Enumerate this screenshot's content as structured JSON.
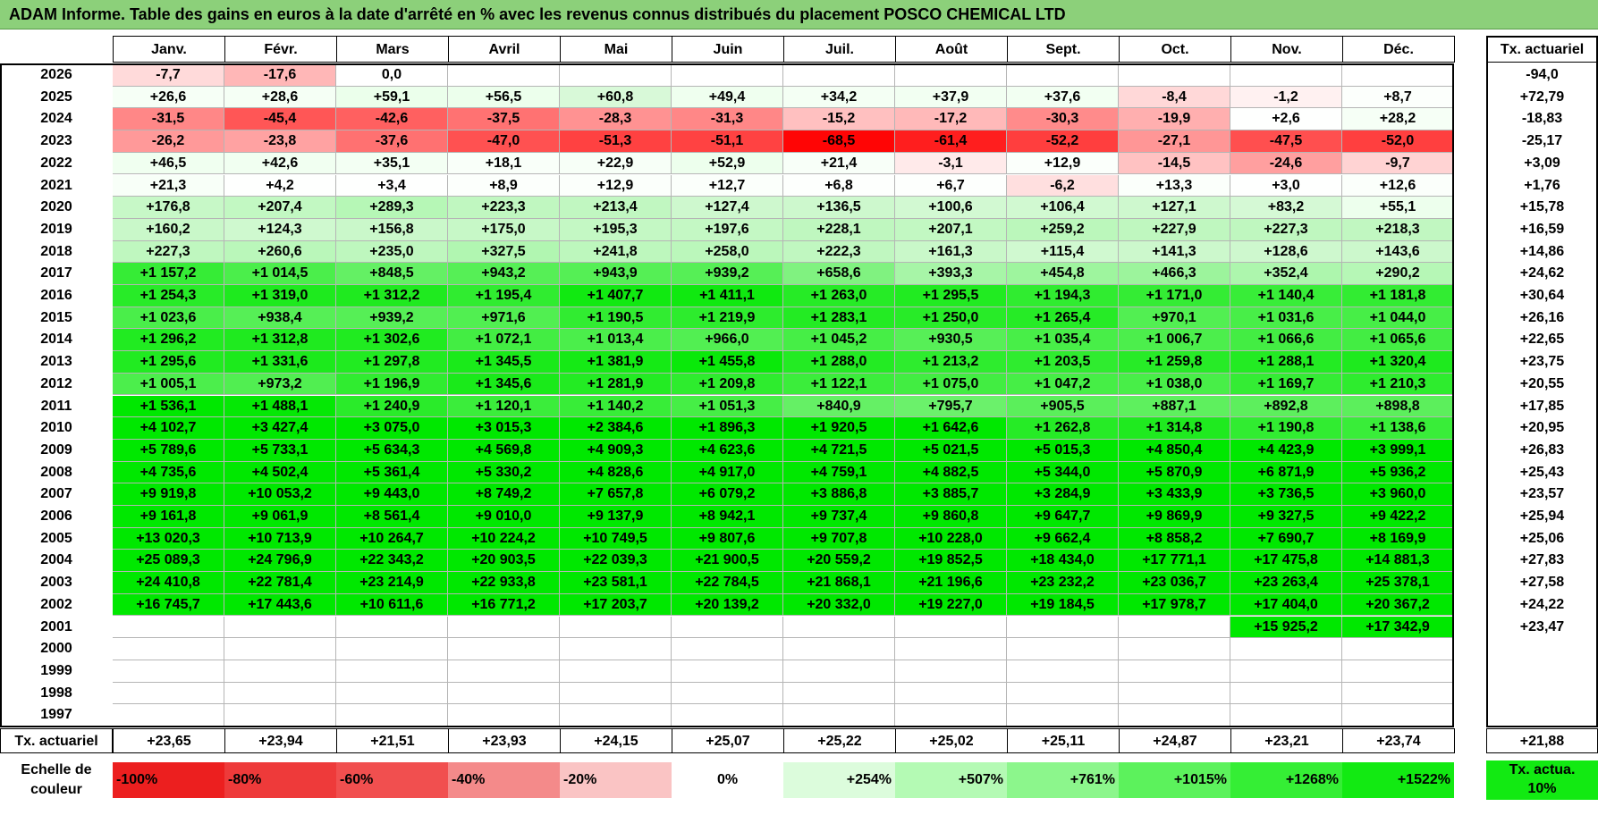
{
  "title": "ADAM Informe. Table des gains en euros à la date d'arrêté en % avec les revenus connus distribués du placement POSCO CHEMICAL LTD",
  "months": [
    "Janv.",
    "Févr.",
    "Mars",
    "Avril",
    "Mai",
    "Juin",
    "Juil.",
    "Août",
    "Sept.",
    "Oct.",
    "Nov.",
    "Déc."
  ],
  "rate_header": "Tx. actuariel",
  "rows": [
    {
      "year": "2026",
      "values": [
        "-7,7",
        "-17,6",
        "0,0",
        "",
        "",
        "",
        "",
        "",
        "",
        "",
        "",
        ""
      ],
      "rate": "-94,0"
    },
    {
      "year": "2025",
      "values": [
        "+26,6",
        "+28,6",
        "+59,1",
        "+56,5",
        "+60,8",
        "+49,4",
        "+34,2",
        "+37,9",
        "+37,6",
        "-8,4",
        "-1,2",
        "+8,7"
      ],
      "rate": "+72,79"
    },
    {
      "year": "2024",
      "values": [
        "-31,5",
        "-45,4",
        "-42,6",
        "-37,5",
        "-28,3",
        "-31,3",
        "-15,2",
        "-17,2",
        "-30,3",
        "-19,9",
        "+2,6",
        "+28,2"
      ],
      "rate": "-18,83"
    },
    {
      "year": "2023",
      "values": [
        "-26,2",
        "-23,8",
        "-37,6",
        "-47,0",
        "-51,3",
        "-51,1",
        "-68,5",
        "-61,4",
        "-52,2",
        "-27,1",
        "-47,5",
        "-52,0"
      ],
      "rate": "-25,17"
    },
    {
      "year": "2022",
      "values": [
        "+46,5",
        "+42,6",
        "+35,1",
        "+18,1",
        "+22,9",
        "+52,9",
        "+21,4",
        "-3,1",
        "+12,9",
        "-14,5",
        "-24,6",
        "-9,7"
      ],
      "rate": "+3,09"
    },
    {
      "year": "2021",
      "values": [
        "+21,3",
        "+4,2",
        "+3,4",
        "+8,9",
        "+12,9",
        "+12,7",
        "+6,8",
        "+6,7",
        "-6,2",
        "+13,3",
        "+3,0",
        "+12,6"
      ],
      "rate": "+1,76"
    },
    {
      "year": "2020",
      "values": [
        "+176,8",
        "+207,4",
        "+289,3",
        "+223,3",
        "+213,4",
        "+127,4",
        "+136,5",
        "+100,6",
        "+106,4",
        "+127,1",
        "+83,2",
        "+55,1"
      ],
      "rate": "+15,78"
    },
    {
      "year": "2019",
      "values": [
        "+160,2",
        "+124,3",
        "+156,8",
        "+175,0",
        "+195,3",
        "+197,6",
        "+228,1",
        "+207,1",
        "+259,2",
        "+227,9",
        "+227,3",
        "+218,3"
      ],
      "rate": "+16,59"
    },
    {
      "year": "2018",
      "values": [
        "+227,3",
        "+260,6",
        "+235,0",
        "+327,5",
        "+241,8",
        "+258,0",
        "+222,3",
        "+161,3",
        "+115,4",
        "+141,3",
        "+128,6",
        "+143,6"
      ],
      "rate": "+14,86"
    },
    {
      "year": "2017",
      "values": [
        "+1 157,2",
        "+1 014,5",
        "+848,5",
        "+943,2",
        "+943,9",
        "+939,2",
        "+658,6",
        "+393,3",
        "+454,8",
        "+466,3",
        "+352,4",
        "+290,2"
      ],
      "rate": "+24,62"
    },
    {
      "year": "2016",
      "values": [
        "+1 254,3",
        "+1 319,0",
        "+1 312,2",
        "+1 195,4",
        "+1 407,7",
        "+1 411,1",
        "+1 263,0",
        "+1 295,5",
        "+1 194,3",
        "+1 171,0",
        "+1 140,4",
        "+1 181,8"
      ],
      "rate": "+30,64"
    },
    {
      "year": "2015",
      "values": [
        "+1 023,6",
        "+938,4",
        "+939,2",
        "+971,6",
        "+1 190,5",
        "+1 219,9",
        "+1 283,1",
        "+1 250,0",
        "+1 265,4",
        "+970,1",
        "+1 031,6",
        "+1 044,0"
      ],
      "rate": "+26,16"
    },
    {
      "year": "2014",
      "values": [
        "+1 296,2",
        "+1 312,8",
        "+1 302,6",
        "+1 072,1",
        "+1 013,4",
        "+966,0",
        "+1 045,2",
        "+930,5",
        "+1 035,4",
        "+1 006,7",
        "+1 066,6",
        "+1 065,6"
      ],
      "rate": "+22,65"
    },
    {
      "year": "2013",
      "values": [
        "+1 295,6",
        "+1 331,6",
        "+1 297,8",
        "+1 345,5",
        "+1 381,9",
        "+1 455,8",
        "+1 288,0",
        "+1 213,2",
        "+1 203,5",
        "+1 259,8",
        "+1 288,1",
        "+1 320,4"
      ],
      "rate": "+23,75"
    },
    {
      "year": "2012",
      "values": [
        "+1 005,1",
        "+973,2",
        "+1 196,9",
        "+1 345,6",
        "+1 281,9",
        "+1 209,8",
        "+1 122,1",
        "+1 075,0",
        "+1 047,2",
        "+1 038,0",
        "+1 169,7",
        "+1 210,3"
      ],
      "rate": "+20,55"
    },
    {
      "year": "2011",
      "values": [
        "+1 536,1",
        "+1 488,1",
        "+1 240,9",
        "+1 120,1",
        "+1 140,2",
        "+1 051,3",
        "+840,9",
        "+795,7",
        "+905,5",
        "+887,1",
        "+892,8",
        "+898,8"
      ],
      "rate": "+17,85"
    },
    {
      "year": "2010",
      "values": [
        "+4 102,7",
        "+3 427,4",
        "+3 075,0",
        "+3 015,3",
        "+2 384,6",
        "+1 896,3",
        "+1 920,5",
        "+1 642,6",
        "+1 262,8",
        "+1 314,8",
        "+1 190,8",
        "+1 138,6"
      ],
      "rate": "+20,95"
    },
    {
      "year": "2009",
      "values": [
        "+5 789,6",
        "+5 733,1",
        "+5 634,3",
        "+4 569,8",
        "+4 909,3",
        "+4 623,6",
        "+4 721,5",
        "+5 021,5",
        "+5 015,3",
        "+4 850,4",
        "+4 423,9",
        "+3 999,1"
      ],
      "rate": "+26,83"
    },
    {
      "year": "2008",
      "values": [
        "+4 735,6",
        "+4 502,4",
        "+5 361,4",
        "+5 330,2",
        "+4 828,6",
        "+4 917,0",
        "+4 759,1",
        "+4 882,5",
        "+5 344,0",
        "+5 870,9",
        "+6 871,9",
        "+5 936,2"
      ],
      "rate": "+25,43"
    },
    {
      "year": "2007",
      "values": [
        "+9 919,8",
        "+10 053,2",
        "+9 443,0",
        "+8 749,2",
        "+7 657,8",
        "+6 079,2",
        "+3 886,8",
        "+3 885,7",
        "+3 284,9",
        "+3 433,9",
        "+3 736,5",
        "+3 960,0"
      ],
      "rate": "+23,57"
    },
    {
      "year": "2006",
      "values": [
        "+9 161,8",
        "+9 061,9",
        "+8 561,4",
        "+9 010,0",
        "+9 137,9",
        "+8 942,1",
        "+9 737,4",
        "+9 860,8",
        "+9 647,7",
        "+9 869,9",
        "+9 327,5",
        "+9 422,2"
      ],
      "rate": "+25,94"
    },
    {
      "year": "2005",
      "values": [
        "+13 020,3",
        "+10 713,9",
        "+10 264,7",
        "+10 224,2",
        "+10 749,5",
        "+9 807,6",
        "+9 707,8",
        "+10 228,0",
        "+9 662,4",
        "+8 858,2",
        "+7 690,7",
        "+8 169,9"
      ],
      "rate": "+25,06"
    },
    {
      "year": "2004",
      "values": [
        "+25 089,3",
        "+24 796,9",
        "+22 343,2",
        "+20 903,5",
        "+22 039,3",
        "+21 900,5",
        "+20 559,2",
        "+19 852,5",
        "+18 434,0",
        "+17 771,1",
        "+17 475,8",
        "+14 881,3"
      ],
      "rate": "+27,83"
    },
    {
      "year": "2003",
      "values": [
        "+24 410,8",
        "+22 781,4",
        "+23 214,9",
        "+22 933,8",
        "+23 581,1",
        "+22 784,5",
        "+21 868,1",
        "+21 196,6",
        "+23 232,2",
        "+23 036,7",
        "+23 263,4",
        "+25 378,1"
      ],
      "rate": "+27,58"
    },
    {
      "year": "2002",
      "values": [
        "+16 745,7",
        "+17 443,6",
        "+10 611,6",
        "+16 771,2",
        "+17 203,7",
        "+20 139,2",
        "+20 332,0",
        "+19 227,0",
        "+19 184,5",
        "+17 978,7",
        "+17 404,0",
        "+20 367,2"
      ],
      "rate": "+24,22"
    },
    {
      "year": "2001",
      "values": [
        "",
        "",
        "",
        "",
        "",
        "",
        "",
        "",
        "",
        "",
        "+15 925,2",
        "+17 342,9"
      ],
      "rate": "+23,47"
    },
    {
      "year": "2000",
      "values": [
        "",
        "",
        "",
        "",
        "",
        "",
        "",
        "",
        "",
        "",
        "",
        ""
      ],
      "rate": ""
    },
    {
      "year": "1999",
      "values": [
        "",
        "",
        "",
        "",
        "",
        "",
        "",
        "",
        "",
        "",
        "",
        ""
      ],
      "rate": ""
    },
    {
      "year": "1998",
      "values": [
        "",
        "",
        "",
        "",
        "",
        "",
        "",
        "",
        "",
        "",
        "",
        ""
      ],
      "rate": ""
    },
    {
      "year": "1997",
      "values": [
        "",
        "",
        "",
        "",
        "",
        "",
        "",
        "",
        "",
        "",
        "",
        ""
      ],
      "rate": ""
    }
  ],
  "footer": {
    "label": "Tx. actuariel",
    "values": [
      "+23,65",
      "+23,94",
      "+21,51",
      "+23,93",
      "+24,15",
      "+25,07",
      "+25,22",
      "+25,02",
      "+25,11",
      "+24,87",
      "+23,21",
      "+23,74"
    ],
    "total": "+21,88"
  },
  "legend": {
    "label": "Echelle de couleur",
    "items": [
      {
        "text": "-100%",
        "color": "#ec1f1f",
        "align": "left"
      },
      {
        "text": "-80%",
        "color": "#ee3a3a",
        "align": "left"
      },
      {
        "text": "-60%",
        "color": "#f14f4f",
        "align": "left"
      },
      {
        "text": "-40%",
        "color": "#f48a8a",
        "align": "left"
      },
      {
        "text": "-20%",
        "color": "#fac4c4",
        "align": "left"
      },
      {
        "text": "0%",
        "color": "#ffffff",
        "align": "center"
      },
      {
        "text": "+254%",
        "color": "#dcfcdc",
        "align": "right"
      },
      {
        "text": "+507%",
        "color": "#b4fab4",
        "align": "right"
      },
      {
        "text": "+761%",
        "color": "#8cf68c",
        "align": "right"
      },
      {
        "text": "+1015%",
        "color": "#5cf25c",
        "align": "right"
      },
      {
        "text": "+1268%",
        "color": "#35ee35",
        "align": "right"
      },
      {
        "text": "+1522%",
        "color": "#12ea12",
        "align": "right"
      }
    ],
    "rate_text": "Tx. actua. 10%",
    "rate_color": "#12ea12"
  },
  "colors": {
    "title_bg": "#8cd07a",
    "neg_strong": "#ff0000",
    "pos_strong": "#00e600"
  }
}
